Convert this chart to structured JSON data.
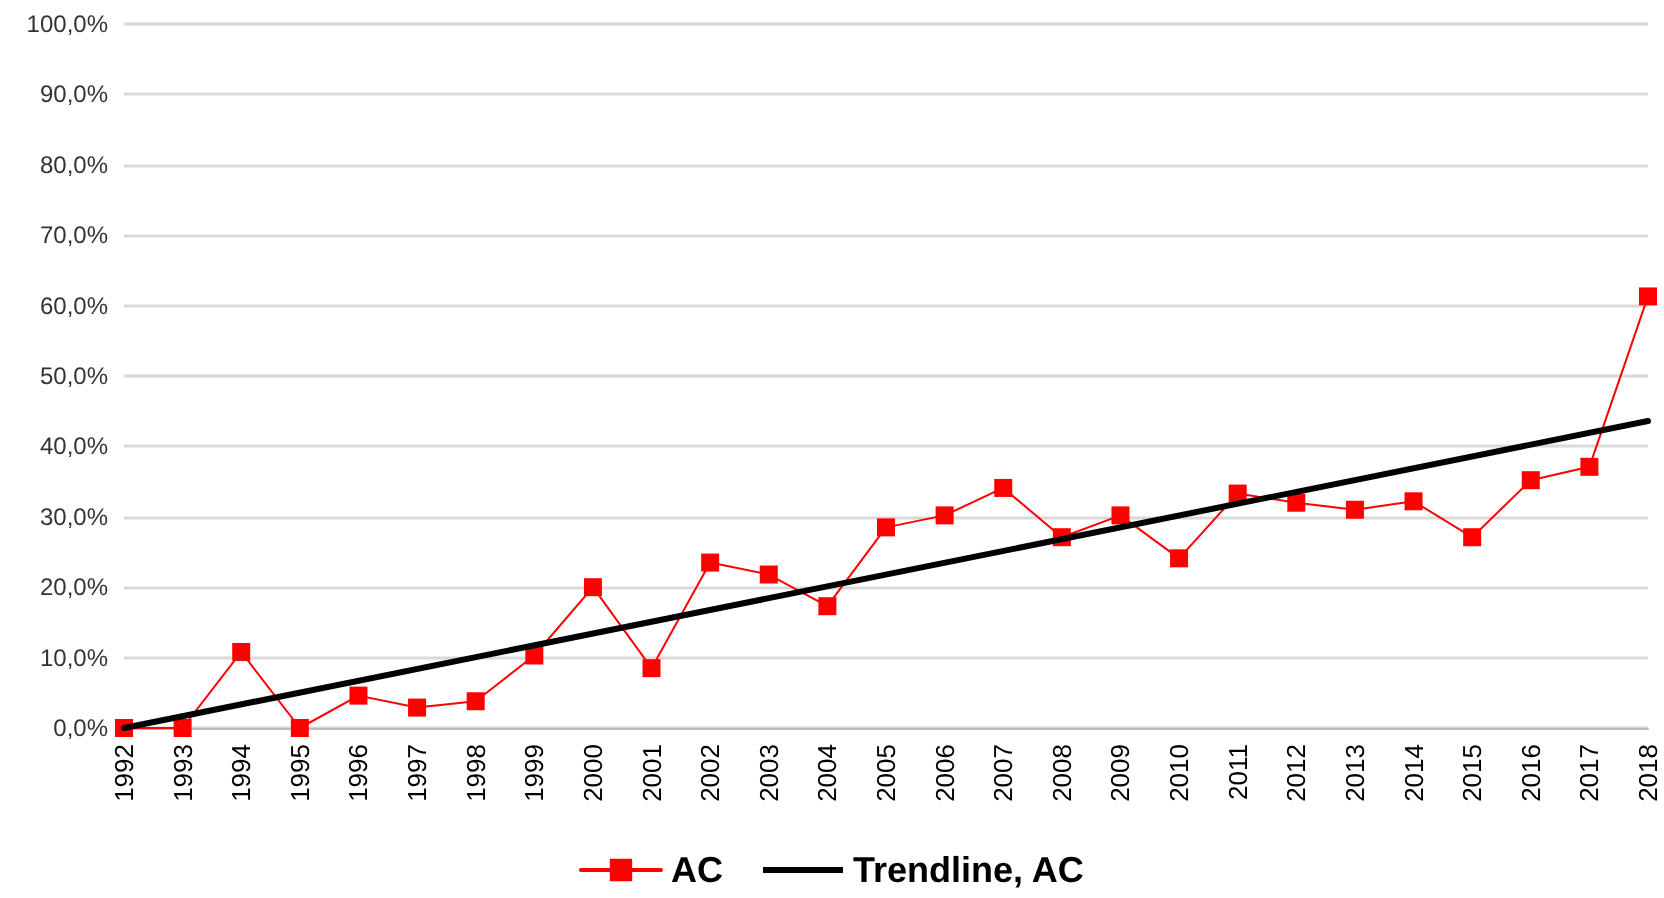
{
  "chart_data": {
    "type": "line",
    "categories": [
      "1992",
      "1993",
      "1994",
      "1995",
      "1996",
      "1997",
      "1998",
      "1999",
      "2000",
      "2001",
      "2002",
      "2003",
      "2004",
      "2005",
      "2006",
      "2007",
      "2008",
      "2009",
      "2010",
      "2011",
      "2012",
      "2013",
      "2014",
      "2015",
      "2016",
      "2017",
      "2018"
    ],
    "series": [
      {
        "name": "AC",
        "color": "#ff0000",
        "marker": "square",
        "values": [
          0,
          0,
          10.8,
          0,
          4.6,
          2.9,
          3.8,
          10.3,
          20,
          8.5,
          23.5,
          21.8,
          17.3,
          28.5,
          30.2,
          34.1,
          27.1,
          30.2,
          24.1,
          33.3,
          32,
          31,
          32.2,
          27.1,
          35.2,
          37.1,
          61.3
        ]
      },
      {
        "name": "Trendline, AC",
        "type": "line",
        "color": "#000000",
        "marker": "none",
        "values": [
          0,
          null,
          null,
          null,
          null,
          null,
          null,
          null,
          null,
          null,
          null,
          null,
          null,
          null,
          null,
          null,
          null,
          null,
          null,
          null,
          null,
          null,
          null,
          null,
          null,
          null,
          43.6
        ]
      }
    ],
    "ylim": [
      0,
      100
    ],
    "yticks": [
      {
        "value": 0,
        "label": "0,0%"
      },
      {
        "value": 10,
        "label": "10,0%"
      },
      {
        "value": 20,
        "label": "20,0%"
      },
      {
        "value": 30,
        "label": "30,0%"
      },
      {
        "value": 40,
        "label": "40,0%"
      },
      {
        "value": 50,
        "label": "50,0%"
      },
      {
        "value": 60,
        "label": "60,0%"
      },
      {
        "value": 70,
        "label": "70,0%"
      },
      {
        "value": 80,
        "label": "80,0%"
      },
      {
        "value": 90,
        "label": "90,0%"
      },
      {
        "value": 100,
        "label": "100,0%"
      }
    ],
    "grid": "y",
    "legend": "bottom"
  }
}
